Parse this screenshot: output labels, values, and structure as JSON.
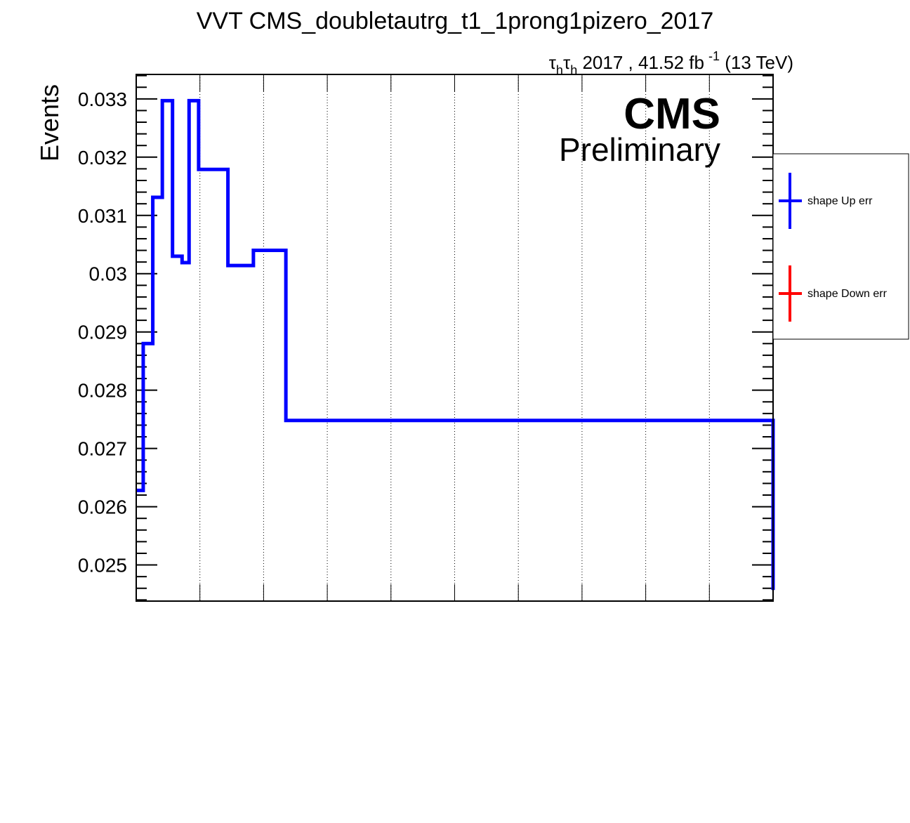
{
  "chart_data": {
    "type": "line",
    "step": true,
    "title": "VVT CMS_doubletautrg_t1_1prong1pizero_2017",
    "lumi": {
      "tau": "τ",
      "sub": "h",
      "text": "2017 , 41.52 fb",
      "sup": "-1",
      "energy": "(13 TeV)"
    },
    "cms_label": "CMS",
    "cms_sublabel": "Preliminary",
    "ylabel": "Events",
    "xlabel": "",
    "ylim": [
      0.02438,
      0.03342
    ],
    "xlim": [
      0,
      1
    ],
    "grid": {
      "x": true,
      "y": false
    },
    "yticks": [
      0.025,
      0.026,
      0.027,
      0.028,
      0.029,
      0.03,
      0.031,
      0.032,
      0.033
    ],
    "ytick_labels": [
      "0.025",
      "0.026",
      "0.027",
      "0.028",
      "0.029",
      "0.03",
      "0.031",
      "0.032",
      "0.033"
    ],
    "bin_edges": [
      0.0,
      0.011,
      0.026,
      0.041,
      0.057,
      0.072,
      0.083,
      0.098,
      0.144,
      0.184,
      0.235,
      1.0
    ],
    "series": [
      {
        "name": "shape Up err",
        "color": "#0000ff",
        "values": [
          0.02628,
          0.0288,
          0.03131,
          0.03297,
          0.0303,
          0.03019,
          0.03297,
          0.03179,
          0.03014,
          0.0304,
          0.02748,
          0.02457
        ]
      },
      {
        "name": "shape Down err",
        "color": "#ff0000",
        "values": []
      }
    ],
    "legend_position": "right"
  }
}
